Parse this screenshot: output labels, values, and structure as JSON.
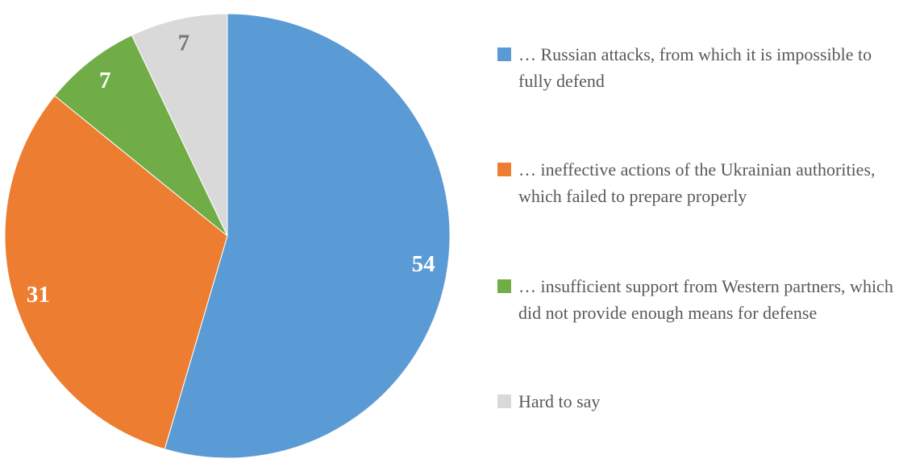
{
  "chart_data": {
    "type": "pie",
    "title": "",
    "labels": [
      "… Russian attacks, from which it is impossible to fully defend",
      "… ineffective actions of the Ukrainian authorities, which failed to prepare properly",
      "… insufficient support from Western partners, which did not provide enough means for defense",
      "Hard to say"
    ],
    "values": [
      54,
      31,
      7,
      7
    ],
    "colors": [
      "#5B9BD5",
      "#ED7D31",
      "#70AD47",
      "#D9D9D9"
    ],
    "value_label_colors": [
      "#FFFFFF",
      "#FFFFFF",
      "#FFFFFF",
      "#767676"
    ],
    "legend_text_color": "#595959",
    "start_angle_deg": 0,
    "direction": "clockwise",
    "legend_position": "right",
    "grid": false
  }
}
